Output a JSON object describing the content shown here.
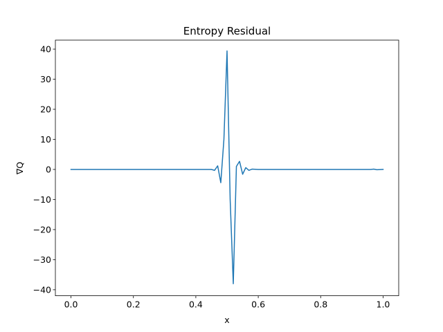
{
  "chart_data": {
    "type": "line",
    "title": "Entropy Residual",
    "xlabel": "x",
    "ylabel": "∇Q",
    "xlim": [
      -0.05,
      1.05
    ],
    "ylim": [
      -42,
      43
    ],
    "xticks": [
      0.0,
      0.2,
      0.4,
      0.6,
      0.8,
      1.0
    ],
    "xtick_labels": [
      "0.0",
      "0.2",
      "0.4",
      "0.6",
      "0.8",
      "1.0"
    ],
    "yticks": [
      -40,
      -30,
      -20,
      -10,
      0,
      10,
      20,
      30,
      40
    ],
    "ytick_labels": [
      "−40",
      "−30",
      "−20",
      "−10",
      "0",
      "10",
      "20",
      "30",
      "40"
    ],
    "grid": false,
    "colors": {
      "line": "#1f77b4",
      "axes": "#000000",
      "background": "#ffffff"
    },
    "series": [
      {
        "x": [
          0.0,
          0.1,
          0.2,
          0.3,
          0.4,
          0.44,
          0.45,
          0.46,
          0.47,
          0.48,
          0.49,
          0.5,
          0.51,
          0.52,
          0.53,
          0.54,
          0.55,
          0.56,
          0.57,
          0.58,
          0.6,
          0.7,
          0.8,
          0.9,
          0.96,
          0.97,
          0.98,
          1.0
        ],
        "y": [
          0,
          0,
          0,
          0,
          0,
          0,
          0,
          -0.3,
          1.2,
          -4.4,
          10.0,
          39.4,
          -10.0,
          -38.0,
          1.0,
          2.7,
          -1.6,
          0.6,
          -0.3,
          0.1,
          0,
          0,
          0,
          0,
          0,
          0.1,
          -0.1,
          0
        ]
      }
    ]
  }
}
